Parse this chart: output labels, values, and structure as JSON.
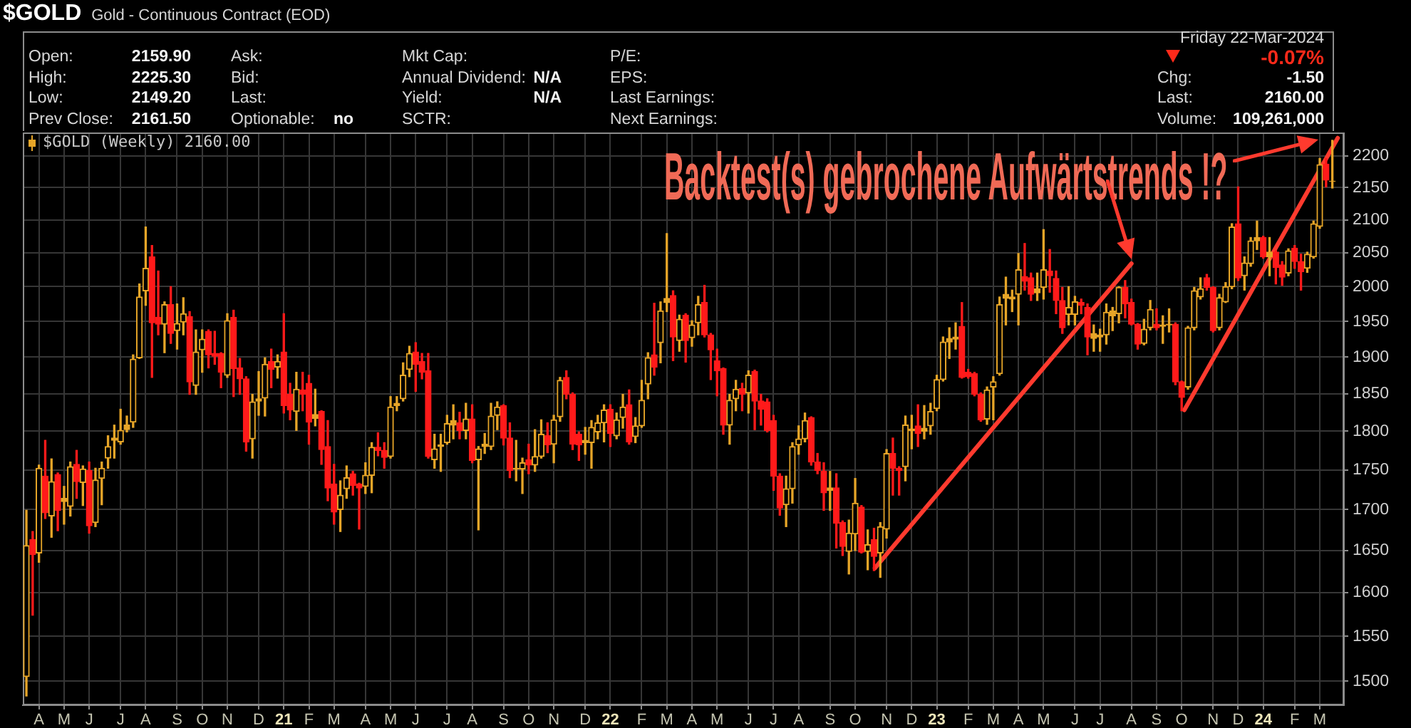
{
  "chart_data": {
    "type": "candlestick",
    "title": "$GOLD",
    "subtitle": "Gold - Continuous Contract (EOD)",
    "log": true,
    "ylim": [
      1474,
      2238
    ],
    "yticks": [
      1500,
      1550,
      1600,
      1650,
      1700,
      1750,
      1800,
      1850,
      1900,
      1950,
      2000,
      2050,
      2100,
      2150,
      2200
    ],
    "xlim": [
      "2020-03-23",
      "2024-04-04"
    ],
    "xticks": [
      {
        "value": "2020-04-10",
        "label": "A"
      },
      {
        "value": "2020-05-08",
        "label": "M"
      },
      {
        "value": "2020-06-05",
        "label": "J"
      },
      {
        "value": "2020-07-10",
        "label": "J"
      },
      {
        "value": "2020-08-07",
        "label": "A"
      },
      {
        "value": "2020-09-11",
        "label": "S"
      },
      {
        "value": "2020-10-09",
        "label": "O"
      },
      {
        "value": "2020-11-06",
        "label": "N"
      },
      {
        "value": "2020-12-11",
        "label": "D"
      },
      {
        "value": "2021-01-08",
        "label": "21"
      },
      {
        "value": "2021-02-05",
        "label": "F"
      },
      {
        "value": "2021-03-05",
        "label": "M"
      },
      {
        "value": "2021-04-09",
        "label": "A"
      },
      {
        "value": "2021-05-07",
        "label": "M"
      },
      {
        "value": "2021-06-04",
        "label": "J"
      },
      {
        "value": "2021-07-09",
        "label": "J"
      },
      {
        "value": "2021-08-06",
        "label": "A"
      },
      {
        "value": "2021-09-10",
        "label": "S"
      },
      {
        "value": "2021-10-08",
        "label": "O"
      },
      {
        "value": "2021-11-05",
        "label": "N"
      },
      {
        "value": "2021-12-10",
        "label": "D"
      },
      {
        "value": "2022-01-07",
        "label": "22"
      },
      {
        "value": "2022-02-11",
        "label": "F"
      },
      {
        "value": "2022-03-11",
        "label": "M"
      },
      {
        "value": "2022-04-08",
        "label": "A"
      },
      {
        "value": "2022-05-06",
        "label": "M"
      },
      {
        "value": "2022-06-10",
        "label": "J"
      },
      {
        "value": "2022-07-08",
        "label": "J"
      },
      {
        "value": "2022-08-05",
        "label": "A"
      },
      {
        "value": "2022-09-09",
        "label": "S"
      },
      {
        "value": "2022-10-07",
        "label": "O"
      },
      {
        "value": "2022-11-11",
        "label": "N"
      },
      {
        "value": "2022-12-09",
        "label": "D"
      },
      {
        "value": "2023-01-06",
        "label": "23"
      },
      {
        "value": "2023-02-10",
        "label": "F"
      },
      {
        "value": "2023-03-10",
        "label": "M"
      },
      {
        "value": "2023-04-07",
        "label": "A"
      },
      {
        "value": "2023-05-05",
        "label": "M"
      },
      {
        "value": "2023-06-09",
        "label": "J"
      },
      {
        "value": "2023-07-07",
        "label": "J"
      },
      {
        "value": "2023-08-11",
        "label": "A"
      },
      {
        "value": "2023-09-08",
        "label": "S"
      },
      {
        "value": "2023-10-06",
        "label": "O"
      },
      {
        "value": "2023-11-10",
        "label": "N"
      },
      {
        "value": "2023-12-08",
        "label": "D"
      },
      {
        "value": "2024-01-05",
        "label": "24"
      },
      {
        "value": "2024-02-09",
        "label": "F"
      },
      {
        "value": "2024-03-08",
        "label": "M"
      }
    ],
    "grid": true,
    "legend": "top left",
    "series": [
      {
        "name": "$GOLD (Weekly) 2160.00",
        "x": [
          "2020-03-27",
          "2020-04-03",
          "2020-04-10",
          "2020-04-17",
          "2020-04-24",
          "2020-05-01",
          "2020-05-08",
          "2020-05-15",
          "2020-05-22",
          "2020-05-29",
          "2020-06-05",
          "2020-06-12",
          "2020-06-19",
          "2020-06-26",
          "2020-07-03",
          "2020-07-10",
          "2020-07-17",
          "2020-07-24",
          "2020-07-31",
          "2020-08-07",
          "2020-08-14",
          "2020-08-21",
          "2020-08-28",
          "2020-09-04",
          "2020-09-11",
          "2020-09-18",
          "2020-09-25",
          "2020-10-02",
          "2020-10-09",
          "2020-10-16",
          "2020-10-23",
          "2020-10-30",
          "2020-11-06",
          "2020-11-13",
          "2020-11-20",
          "2020-11-27",
          "2020-12-04",
          "2020-12-11",
          "2020-12-18",
          "2020-12-25",
          "2021-01-01",
          "2021-01-08",
          "2021-01-15",
          "2021-01-22",
          "2021-01-29",
          "2021-02-05",
          "2021-02-12",
          "2021-02-19",
          "2021-02-26",
          "2021-03-05",
          "2021-03-12",
          "2021-03-19",
          "2021-03-26",
          "2021-04-02",
          "2021-04-09",
          "2021-04-16",
          "2021-04-23",
          "2021-04-30",
          "2021-05-07",
          "2021-05-14",
          "2021-05-21",
          "2021-05-28",
          "2021-06-04",
          "2021-06-11",
          "2021-06-18",
          "2021-06-25",
          "2021-07-02",
          "2021-07-09",
          "2021-07-16",
          "2021-07-23",
          "2021-07-30",
          "2021-08-06",
          "2021-08-13",
          "2021-08-20",
          "2021-08-27",
          "2021-09-03",
          "2021-09-10",
          "2021-09-17",
          "2021-09-24",
          "2021-10-01",
          "2021-10-08",
          "2021-10-15",
          "2021-10-22",
          "2021-10-29",
          "2021-11-05",
          "2021-11-12",
          "2021-11-19",
          "2021-11-26",
          "2021-12-03",
          "2021-12-10",
          "2021-12-17",
          "2021-12-24",
          "2021-12-31",
          "2022-01-07",
          "2022-01-14",
          "2022-01-21",
          "2022-01-28",
          "2022-02-04",
          "2022-02-11",
          "2022-02-18",
          "2022-02-25",
          "2022-03-04",
          "2022-03-11",
          "2022-03-18",
          "2022-03-25",
          "2022-04-01",
          "2022-04-08",
          "2022-04-15",
          "2022-04-22",
          "2022-04-29",
          "2022-05-06",
          "2022-05-13",
          "2022-05-20",
          "2022-05-27",
          "2022-06-03",
          "2022-06-10",
          "2022-06-17",
          "2022-06-24",
          "2022-07-01",
          "2022-07-08",
          "2022-07-15",
          "2022-07-22",
          "2022-07-29",
          "2022-08-05",
          "2022-08-12",
          "2022-08-19",
          "2022-08-26",
          "2022-09-02",
          "2022-09-09",
          "2022-09-16",
          "2022-09-23",
          "2022-09-30",
          "2022-10-07",
          "2022-10-14",
          "2022-10-21",
          "2022-10-28",
          "2022-11-04",
          "2022-11-11",
          "2022-11-18",
          "2022-11-25",
          "2022-12-02",
          "2022-12-09",
          "2022-12-16",
          "2022-12-23",
          "2022-12-30",
          "2023-01-06",
          "2023-01-13",
          "2023-01-20",
          "2023-01-27",
          "2023-02-03",
          "2023-02-10",
          "2023-02-17",
          "2023-02-24",
          "2023-03-03",
          "2023-03-10",
          "2023-03-17",
          "2023-03-24",
          "2023-03-31",
          "2023-04-07",
          "2023-04-14",
          "2023-04-21",
          "2023-04-28",
          "2023-05-05",
          "2023-05-12",
          "2023-05-19",
          "2023-05-26",
          "2023-06-02",
          "2023-06-09",
          "2023-06-16",
          "2023-06-23",
          "2023-06-30",
          "2023-07-07",
          "2023-07-14",
          "2023-07-21",
          "2023-07-28",
          "2023-08-04",
          "2023-08-11",
          "2023-08-18",
          "2023-08-25",
          "2023-09-01",
          "2023-09-08",
          "2023-09-15",
          "2023-09-22",
          "2023-09-29",
          "2023-10-06",
          "2023-10-13",
          "2023-10-20",
          "2023-10-27",
          "2023-11-03",
          "2023-11-10",
          "2023-11-17",
          "2023-11-24",
          "2023-12-01",
          "2023-12-08",
          "2023-12-15",
          "2023-12-22",
          "2023-12-29",
          "2024-01-05",
          "2024-01-12",
          "2024-01-19",
          "2024-01-26",
          "2024-02-02",
          "2024-02-09",
          "2024-02-16",
          "2024-02-23",
          "2024-03-01",
          "2024-03-08",
          "2024-03-15",
          "2024-03-22"
        ],
        "ohlc": [
          [
            1505,
            1699,
            1484,
            1656
          ],
          [
            1663,
            1673,
            1574,
            1645
          ],
          [
            1647,
            1756,
            1636,
            1752
          ],
          [
            1742,
            1788,
            1689,
            1696
          ],
          [
            1692,
            1764,
            1666,
            1735
          ],
          [
            1744,
            1746,
            1674,
            1699
          ],
          [
            1710,
            1729,
            1682,
            1714
          ],
          [
            1704,
            1760,
            1692,
            1754
          ],
          [
            1757,
            1775,
            1714,
            1735
          ],
          [
            1734,
            1755,
            1705,
            1751
          ],
          [
            1749,
            1760,
            1671,
            1680
          ],
          [
            1684,
            1752,
            1679,
            1737
          ],
          [
            1739,
            1760,
            1706,
            1752
          ],
          [
            1765,
            1794,
            1752,
            1780
          ],
          [
            1788,
            1808,
            1765,
            1791
          ],
          [
            1786,
            1829,
            1783,
            1801
          ],
          [
            1802,
            1820,
            1799,
            1808
          ],
          [
            1812,
            1903,
            1805,
            1897
          ],
          [
            1899,
            2004,
            1898,
            1985
          ],
          [
            1994,
            2089,
            1973,
            2027
          ],
          [
            2044,
            2061,
            1872,
            1948
          ],
          [
            1956,
            2023,
            1931,
            1946
          ],
          [
            1946,
            1978,
            1906,
            1974
          ],
          [
            1974,
            2000,
            1919,
            1933
          ],
          [
            1937,
            1975,
            1911,
            1947
          ],
          [
            1949,
            1984,
            1931,
            1961
          ],
          [
            1957,
            1964,
            1849,
            1866
          ],
          [
            1861,
            1938,
            1849,
            1907
          ],
          [
            1910,
            1938,
            1879,
            1925
          ],
          [
            1936,
            1938,
            1885,
            1903
          ],
          [
            1905,
            1936,
            1890,
            1901
          ],
          [
            1905,
            1906,
            1858,
            1879
          ],
          [
            1875,
            1961,
            1872,
            1951
          ],
          [
            1956,
            1966,
            1846,
            1884
          ],
          [
            1885,
            1898,
            1849,
            1870
          ],
          [
            1870,
            1873,
            1774,
            1786
          ],
          [
            1790,
            1849,
            1765,
            1839
          ],
          [
            1840,
            1880,
            1821,
            1843
          ],
          [
            1844,
            1899,
            1820,
            1890
          ],
          [
            1894,
            1911,
            1858,
            1883
          ],
          [
            1886,
            1903,
            1871,
            1894
          ],
          [
            1907,
            1961,
            1824,
            1834
          ],
          [
            1849,
            1864,
            1815,
            1828
          ],
          [
            1826,
            1879,
            1801,
            1856
          ],
          [
            1855,
            1879,
            1827,
            1849
          ],
          [
            1864,
            1875,
            1783,
            1812
          ],
          [
            1817,
            1856,
            1807,
            1822
          ],
          [
            1826,
            1827,
            1757,
            1776
          ],
          [
            1780,
            1814,
            1711,
            1727
          ],
          [
            1732,
            1757,
            1682,
            1697
          ],
          [
            1700,
            1736,
            1673,
            1718
          ],
          [
            1726,
            1755,
            1714,
            1740
          ],
          [
            1745,
            1748,
            1718,
            1730
          ],
          [
            1732,
            1733,
            1676,
            1727
          ],
          [
            1729,
            1759,
            1720,
            1743
          ],
          [
            1743,
            1785,
            1721,
            1779
          ],
          [
            1779,
            1798,
            1768,
            1775
          ],
          [
            1775,
            1785,
            1752,
            1766
          ],
          [
            1767,
            1846,
            1765,
            1832
          ],
          [
            1834,
            1846,
            1827,
            1837
          ],
          [
            1843,
            1892,
            1840,
            1875
          ],
          [
            1883,
            1915,
            1873,
            1905
          ],
          [
            1907,
            1920,
            1853,
            1890
          ],
          [
            1894,
            1905,
            1870,
            1879
          ],
          [
            1881,
            1905,
            1765,
            1767
          ],
          [
            1763,
            1796,
            1752,
            1777
          ],
          [
            1780,
            1796,
            1748,
            1782
          ],
          [
            1785,
            1821,
            1783,
            1810
          ],
          [
            1808,
            1835,
            1790,
            1814
          ],
          [
            1811,
            1825,
            1790,
            1801
          ],
          [
            1801,
            1837,
            1790,
            1816
          ],
          [
            1816,
            1835,
            1759,
            1762
          ],
          [
            1763,
            1780,
            1675,
            1777
          ],
          [
            1780,
            1797,
            1771,
            1783
          ],
          [
            1780,
            1837,
            1776,
            1820
          ],
          [
            1821,
            1839,
            1802,
            1832
          ],
          [
            1834,
            1835,
            1782,
            1791
          ],
          [
            1791,
            1811,
            1740,
            1749
          ],
          [
            1751,
            1788,
            1736,
            1752
          ],
          [
            1751,
            1765,
            1720,
            1759
          ],
          [
            1763,
            1783,
            1745,
            1756
          ],
          [
            1756,
            1802,
            1748,
            1767
          ],
          [
            1767,
            1815,
            1765,
            1796
          ],
          [
            1794,
            1811,
            1772,
            1782
          ],
          [
            1783,
            1821,
            1759,
            1815
          ],
          [
            1819,
            1872,
            1813,
            1868
          ],
          [
            1872,
            1881,
            1843,
            1849
          ],
          [
            1849,
            1851,
            1776,
            1783
          ],
          [
            1796,
            1799,
            1762,
            1782
          ],
          [
            1785,
            1805,
            1770,
            1788
          ],
          [
            1785,
            1814,
            1752,
            1805
          ],
          [
            1799,
            1821,
            1790,
            1811
          ],
          [
            1811,
            1835,
            1786,
            1828
          ],
          [
            1829,
            1835,
            1780,
            1797
          ],
          [
            1794,
            1824,
            1790,
            1815
          ],
          [
            1818,
            1849,
            1804,
            1832
          ],
          [
            1835,
            1855,
            1783,
            1786
          ],
          [
            1793,
            1818,
            1785,
            1807
          ],
          [
            1807,
            1868,
            1805,
            1841
          ],
          [
            1863,
            1906,
            1843,
            1899
          ],
          [
            1903,
            1976,
            1875,
            1886
          ],
          [
            1920,
            1978,
            1892,
            1965
          ],
          [
            1977,
            2079,
            1964,
            1983
          ],
          [
            1987,
            1994,
            1895,
            1928
          ],
          [
            1923,
            1959,
            1908,
            1953
          ],
          [
            1959,
            1961,
            1893,
            1923
          ],
          [
            1927,
            1951,
            1915,
            1945
          ],
          [
            1948,
            1986,
            1931,
            1974
          ],
          [
            1977,
            2002,
            1928,
            1931
          ],
          [
            1931,
            1933,
            1869,
            1910
          ],
          [
            1895,
            1911,
            1847,
            1881
          ],
          [
            1884,
            1885,
            1796,
            1808
          ],
          [
            1808,
            1849,
            1783,
            1841
          ],
          [
            1843,
            1868,
            1827,
            1856
          ],
          [
            1857,
            1864,
            1827,
            1849
          ],
          [
            1851,
            1881,
            1824,
            1875
          ],
          [
            1880,
            1882,
            1802,
            1840
          ],
          [
            1840,
            1849,
            1808,
            1829
          ],
          [
            1839,
            1843,
            1799,
            1801
          ],
          [
            1814,
            1821,
            1724,
            1742
          ],
          [
            1742,
            1745,
            1693,
            1702
          ],
          [
            1706,
            1742,
            1679,
            1726
          ],
          [
            1726,
            1785,
            1708,
            1780
          ],
          [
            1782,
            1807,
            1770,
            1790
          ],
          [
            1790,
            1824,
            1786,
            1814
          ],
          [
            1818,
            1819,
            1756,
            1760
          ],
          [
            1760,
            1771,
            1745,
            1749
          ],
          [
            1748,
            1759,
            1699,
            1721
          ],
          [
            1724,
            1748,
            1699,
            1727
          ],
          [
            1727,
            1745,
            1653,
            1683
          ],
          [
            1684,
            1686,
            1644,
            1655
          ],
          [
            1649,
            1687,
            1622,
            1671
          ],
          [
            1670,
            1739,
            1650,
            1708
          ],
          [
            1703,
            1705,
            1647,
            1648
          ],
          [
            1649,
            1675,
            1627,
            1657
          ],
          [
            1663,
            1677,
            1626,
            1643
          ],
          [
            1647,
            1684,
            1618,
            1679
          ],
          [
            1676,
            1776,
            1665,
            1771
          ],
          [
            1771,
            1791,
            1718,
            1752
          ],
          [
            1752,
            1754,
            1718,
            1749
          ],
          [
            1754,
            1820,
            1736,
            1808
          ],
          [
            1801,
            1821,
            1777,
            1803
          ],
          [
            1807,
            1835,
            1780,
            1797
          ],
          [
            1800,
            1834,
            1790,
            1804
          ],
          [
            1807,
            1837,
            1796,
            1826
          ],
          [
            1830,
            1875,
            1827,
            1869
          ],
          [
            1869,
            1928,
            1867,
            1921
          ],
          [
            1921,
            1941,
            1898,
            1926
          ],
          [
            1925,
            1948,
            1911,
            1928
          ],
          [
            1943,
            1977,
            1871,
            1872
          ],
          [
            1879,
            1883,
            1871,
            1873
          ],
          [
            1877,
            1879,
            1847,
            1849
          ],
          [
            1849,
            1851,
            1813,
            1815
          ],
          [
            1816,
            1859,
            1809,
            1855
          ],
          [
            1859,
            1873,
            1815,
            1866
          ],
          [
            1877,
            1985,
            1875,
            1974
          ],
          [
            1983,
            2014,
            1945,
            1989
          ],
          [
            1982,
            1995,
            1964,
            1985
          ],
          [
            1989,
            2049,
            1945,
            2025
          ],
          [
            2015,
            2064,
            1995,
            2008
          ],
          [
            2013,
            2020,
            1980,
            1989
          ],
          [
            1991,
            2020,
            1980,
            1997
          ],
          [
            1999,
            2085,
            1982,
            2025
          ],
          [
            2023,
            2055,
            1992,
            2016
          ],
          [
            2012,
            2023,
            1961,
            1980
          ],
          [
            1980,
            1999,
            1933,
            1941
          ],
          [
            1960,
            2000,
            1945,
            1970
          ],
          [
            1960,
            1986,
            1945,
            1978
          ],
          [
            1977,
            1982,
            1961,
            1973
          ],
          [
            1970,
            1975,
            1903,
            1928
          ],
          [
            1926,
            1945,
            1908,
            1933
          ],
          [
            1928,
            1939,
            1908,
            1931
          ],
          [
            1931,
            1975,
            1918,
            1963
          ],
          [
            1958,
            1970,
            1937,
            1965
          ],
          [
            1961,
            2000,
            1948,
            1999
          ],
          [
            1999,
            2009,
            1955,
            1975
          ],
          [
            1977,
            1982,
            1945,
            1946
          ],
          [
            1946,
            1947,
            1911,
            1918
          ],
          [
            1919,
            1953,
            1917,
            1939
          ],
          [
            1941,
            1980,
            1938,
            1967
          ],
          [
            1946,
            1968,
            1938,
            1941
          ],
          [
            1943,
            1958,
            1919,
            1945
          ],
          [
            1945,
            1968,
            1935,
            1946
          ],
          [
            1946,
            1948,
            1862,
            1866
          ],
          [
            1866,
            1867,
            1827,
            1845
          ],
          [
            1859,
            1943,
            1856,
            1941
          ],
          [
            1941,
            1999,
            1938,
            1994
          ],
          [
            1985,
            2013,
            1982,
            1997
          ],
          [
            2013,
            2018,
            1995,
            1999
          ],
          [
            1999,
            2000,
            1935,
            1937
          ],
          [
            1941,
            1989,
            1938,
            1984
          ],
          [
            1978,
            2006,
            1977,
            2000
          ],
          [
            2000,
            2094,
            1997,
            2089
          ],
          [
            2094,
            2151,
            2009,
            2013
          ],
          [
            2016,
            2044,
            1995,
            2035
          ],
          [
            2034,
            2073,
            2030,
            2068
          ],
          [
            2068,
            2098,
            2055,
            2073
          ],
          [
            2073,
            2075,
            2042,
            2044
          ],
          [
            2044,
            2073,
            2016,
            2051
          ],
          [
            2051,
            2053,
            2004,
            2028
          ],
          [
            2032,
            2037,
            2002,
            2014
          ],
          [
            2020,
            2056,
            2016,
            2053
          ],
          [
            2057,
            2061,
            2027,
            2037
          ],
          [
            2037,
            2048,
            1995,
            2022
          ],
          [
            2027,
            2051,
            2021,
            2048
          ],
          [
            2044,
            2098,
            2042,
            2094
          ],
          [
            2090,
            2196,
            2087,
            2186
          ],
          [
            2187,
            2196,
            2151,
            2161.5
          ],
          [
            2159.9,
            2225.3,
            2149.2,
            2160
          ]
        ],
        "colors": [
          "#e6a528",
          "#ff1a1a",
          "#e6a528",
          "#ff1a1a",
          "#e6a528",
          "#ff1a1a",
          "#e6a528",
          "#e6a528",
          "#ff1a1a",
          "#e6a528",
          "#ff1a1a",
          "#e6a528",
          "#e6a528",
          "#e6a528",
          "#e6a528",
          "#e6a528",
          "#e6a528",
          "#e6a528",
          "#e6a528",
          "#e6a528",
          "#ff1a1a",
          "#ff1a1a",
          "#e6a528",
          "#ff1a1a",
          "#e6a528",
          "#e6a528",
          "#ff1a1a",
          "#e6a528",
          "#e6a528",
          "#ff1a1a",
          "#ff1a1a",
          "#ff1a1a",
          "#e6a528",
          "#ff1a1a",
          "#ff1a1a",
          "#ff1a1a",
          "#e6a528",
          "#e6a528",
          "#e6a528",
          "#ff1a1a",
          "#e6a528",
          "#ff1a1a",
          "#ff1a1a",
          "#e6a528",
          "#ff1a1a",
          "#ff1a1a",
          "#e6a528",
          "#ff1a1a",
          "#ff1a1a",
          "#ff1a1a",
          "#e6a528",
          "#e6a528",
          "#ff1a1a",
          "#ff1a1a",
          "#e6a528",
          "#e6a528",
          "#ff1a1a",
          "#ff1a1a",
          "#e6a528",
          "#e6a528",
          "#e6a528",
          "#e6a528",
          "#ff1a1a",
          "#ff1a1a",
          "#ff1a1a",
          "#e6a528",
          "#e6a528",
          "#e6a528",
          "#e6a528",
          "#ff1a1a",
          "#e6a528",
          "#ff1a1a",
          "#e6a528",
          "#e6a528",
          "#e6a528",
          "#e6a528",
          "#ff1a1a",
          "#ff1a1a",
          "#e6a528",
          "#e6a528",
          "#ff1a1a",
          "#e6a528",
          "#e6a528",
          "#ff1a1a",
          "#e6a528",
          "#e6a528",
          "#ff1a1a",
          "#ff1a1a",
          "#ff1a1a",
          "#e6a528",
          "#e6a528",
          "#e6a528",
          "#e6a528",
          "#ff1a1a",
          "#e6a528",
          "#e6a528",
          "#ff1a1a",
          "#e6a528",
          "#e6a528",
          "#e6a528",
          "#ff1a1a",
          "#e6a528",
          "#e6a528",
          "#ff1a1a",
          "#e6a528",
          "#ff1a1a",
          "#e6a528",
          "#e6a528",
          "#ff1a1a",
          "#ff1a1a",
          "#ff1a1a",
          "#ff1a1a",
          "#e6a528",
          "#e6a528",
          "#ff1a1a",
          "#e6a528",
          "#ff1a1a",
          "#ff1a1a",
          "#ff1a1a",
          "#ff1a1a",
          "#ff1a1a",
          "#e6a528",
          "#e6a528",
          "#e6a528",
          "#e6a528",
          "#ff1a1a",
          "#ff1a1a",
          "#ff1a1a",
          "#e6a528",
          "#ff1a1a",
          "#ff1a1a",
          "#e6a528",
          "#e6a528",
          "#ff1a1a",
          "#e6a528",
          "#ff1a1a",
          "#e6a528",
          "#e6a528",
          "#ff1a1a",
          "#ff1a1a",
          "#e6a528",
          "#e6a528",
          "#ff1a1a",
          "#e6a528",
          "#e6a528",
          "#e6a528",
          "#e6a528",
          "#e6a528",
          "#e6a528",
          "#ff1a1a",
          "#ff1a1a",
          "#ff1a1a",
          "#ff1a1a",
          "#e6a528",
          "#e6a528",
          "#e6a528",
          "#e6a528",
          "#e6a528",
          "#e6a528",
          "#ff1a1a",
          "#ff1a1a",
          "#e6a528",
          "#e6a528",
          "#ff1a1a",
          "#ff1a1a",
          "#ff1a1a",
          "#e6a528",
          "#e6a528",
          "#ff1a1a",
          "#ff1a1a",
          "#e6a528",
          "#e6a528",
          "#e6a528",
          "#e6a528",
          "#e6a528",
          "#ff1a1a",
          "#ff1a1a",
          "#ff1a1a",
          "#e6a528",
          "#e6a528",
          "#ff1a1a",
          "#e6a528",
          "#e6a528",
          "#ff1a1a",
          "#ff1a1a",
          "#e6a528",
          "#e6a528",
          "#e6a528",
          "#ff1a1a",
          "#ff1a1a",
          "#e6a528",
          "#e6a528",
          "#e6a528",
          "#ff1a1a",
          "#e6a528",
          "#e6a528",
          "#e6a528",
          "#ff1a1a",
          "#e6a528",
          "#ff1a1a",
          "#ff1a1a",
          "#e6a528",
          "#ff1a1a",
          "#ff1a1a",
          "#e6a528",
          "#e6a528",
          "#e6a528",
          "#ff1a1a",
          "#e6a528"
        ]
      },
      {
        "type": "line",
        "x": [
          "2022-10-29",
          "2023-08-11"
        ],
        "values": [
          1629,
          2034
        ],
        "color": "#ff3a2e"
      },
      {
        "type": "line",
        "x": [
          "2023-10-09",
          "2024-03-28"
        ],
        "values": [
          1828,
          2229
        ],
        "color": "#ff3a2e"
      }
    ],
    "annotations": [
      "Open:",
      "2159.90",
      "High:",
      "2225.30",
      "Low:",
      "2149.20",
      "Prev Close:",
      "2161.50",
      "Ask:",
      "Bid:",
      "Last:",
      "Optionable:",
      "no",
      "Mkt Cap:",
      "Annual Dividend:",
      "N/A",
      "Yield:",
      "N/A",
      "SCTR:",
      "P/E:",
      "EPS:",
      "Last Earnings:",
      "Next Earnings:",
      "Friday 22-Mar-2024",
      "-0.07%",
      "Chg:",
      "-1.50",
      "Last:",
      "2160.00",
      "Volume:",
      "109,261,000",
      "Backtest(s) gebrochene Aufwärtstrends !?"
    ]
  }
}
